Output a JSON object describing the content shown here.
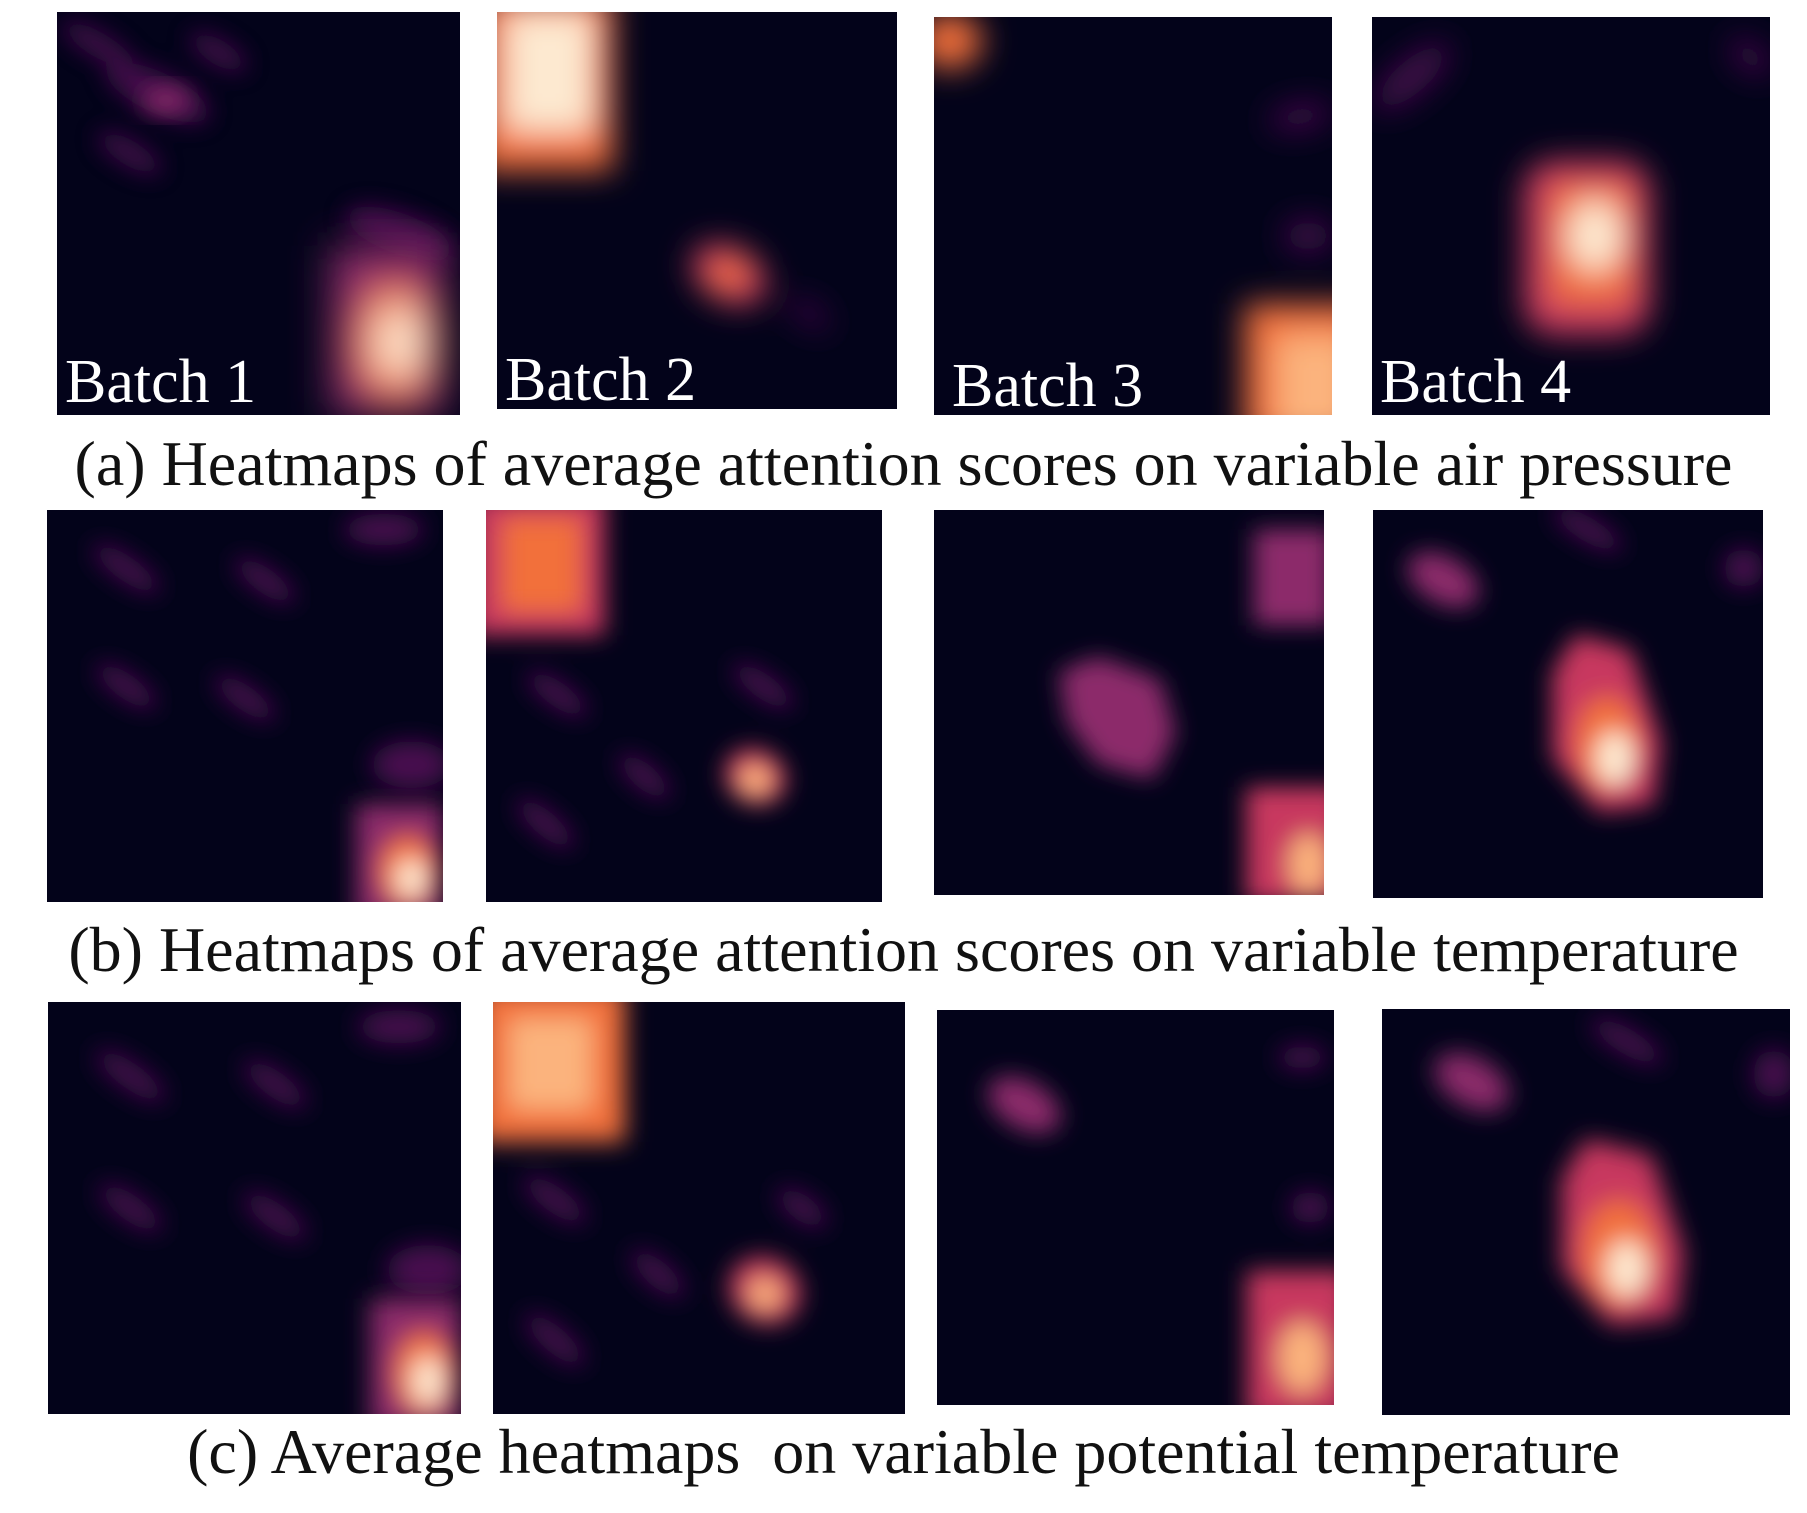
{
  "colormap": [
    "#03031a",
    "#4a0f4f",
    "#8c2a6b",
    "#c8375e",
    "#f2703a",
    "#fbb37d",
    "#fde9d0"
  ],
  "rows": [
    {
      "caption": "(a) Heatmaps of average attention scores on variable air pressure",
      "panels": [
        {
          "label": "Batch 1"
        },
        {
          "label": "Batch 2"
        },
        {
          "label": "Batch 3"
        },
        {
          "label": "Batch 4"
        }
      ]
    },
    {
      "caption": "(b) Heatmaps of average attention scores on variable temperature",
      "panels": [
        {},
        {},
        {},
        {}
      ]
    },
    {
      "caption": "(c) Average heatmaps  on variable potential temperature",
      "panels": [
        {},
        {},
        {},
        {}
      ]
    }
  ]
}
